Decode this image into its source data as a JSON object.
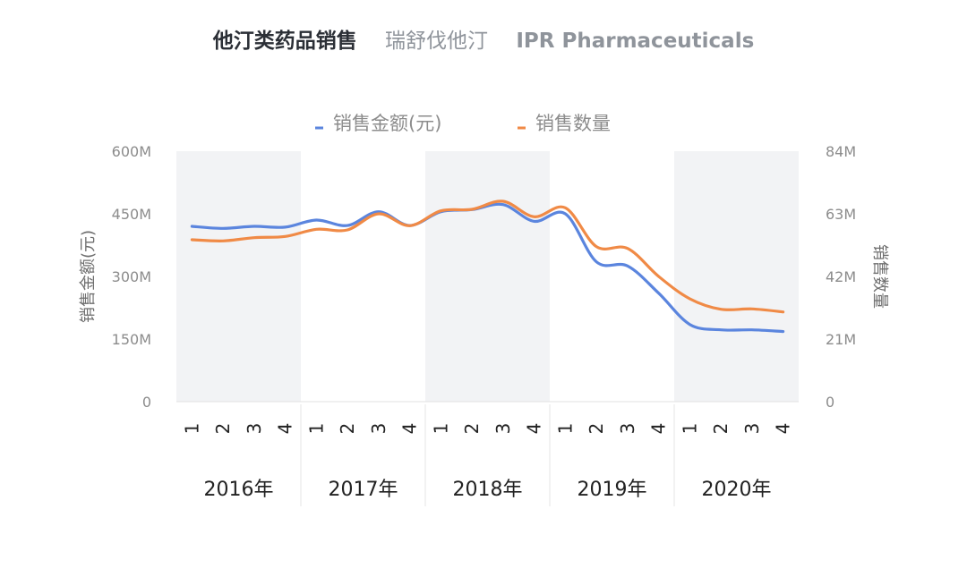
{
  "header": {
    "title": "他汀类药品销售",
    "subtitle": "瑞舒伐他汀",
    "brand": "IPR Pharmaceuticals"
  },
  "chart_data": {
    "type": "line",
    "title": "他汀类药品销售",
    "subtitle": "瑞舒伐他汀",
    "quarters": [
      "1",
      "2",
      "3",
      "4"
    ],
    "years": [
      "2016年",
      "2017年",
      "2018年",
      "2019年",
      "2020年"
    ],
    "series": [
      {
        "name": "销售金额(元)",
        "axis": "left",
        "color": "#5b85de",
        "values": [
          420,
          415,
          420,
          418,
          435,
          422,
          455,
          422,
          455,
          460,
          472,
          432,
          450,
          335,
          325,
          260,
          185,
          172,
          172,
          168
        ]
      },
      {
        "name": "销售数量",
        "axis": "right",
        "color": "#f08a46",
        "values": [
          54.3,
          53.9,
          55.0,
          55.4,
          57.8,
          57.6,
          63.0,
          59.0,
          64.0,
          64.5,
          67.2,
          62.0,
          65.0,
          52.0,
          51.4,
          42.0,
          34.5,
          31.0,
          31.1,
          30.1
        ]
      }
    ],
    "y_left": {
      "label": "销售金额(元)",
      "ylim": [
        0,
        600
      ],
      "ticks": [
        0,
        150,
        300,
        450,
        600
      ],
      "tick_labels": [
        "0",
        "150M",
        "300M",
        "450M",
        "600M"
      ]
    },
    "y_right": {
      "label": "销售数量",
      "ylim": [
        0,
        84
      ],
      "ticks": [
        0,
        21,
        42,
        63,
        84
      ],
      "tick_labels": [
        "0",
        "21M",
        "42M",
        "63M",
        "84M"
      ]
    },
    "legend_position": "top-center",
    "alternating_year_bands": true
  }
}
